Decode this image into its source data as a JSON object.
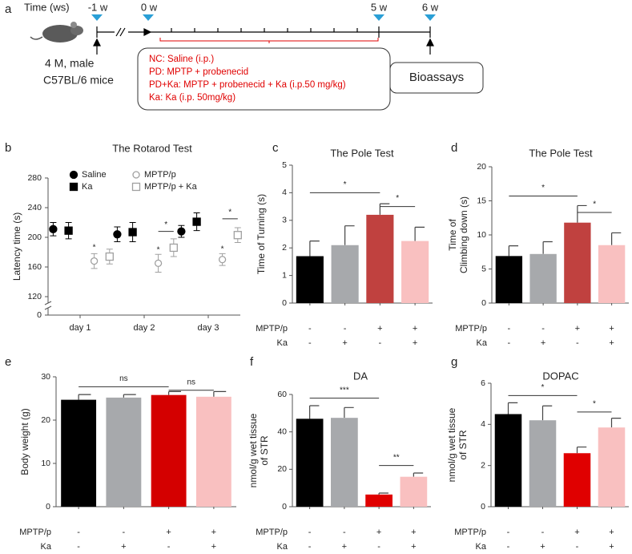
{
  "timeline": {
    "panel": "a",
    "axis_label": "Time (ws)",
    "timepoints": [
      "-1 w",
      "0 w",
      "5 w",
      "6 w"
    ],
    "subject": [
      "4 M, male",
      "C57BL/6 mice"
    ],
    "groups": [
      "NC: Saline  (i.p.)",
      "PD: MPTP + probenecid",
      "PD+Ka: MPTP + probenecid  + Ka (i.p.50 mg/kg)",
      "Ka: Ka (i.p. 50mg/kg)"
    ],
    "endpoint": "Bioassays"
  },
  "chart_data": [
    {
      "type": "scatter",
      "panel": "b",
      "title": "The Rotarod Test",
      "y_label": [
        "Latency time (s)"
      ],
      "categories": [
        "day 1",
        "day 2",
        "day 3"
      ],
      "ylim": [
        0,
        280
      ],
      "y_break": [
        0,
        120
      ],
      "yticks": [
        0,
        120,
        160,
        200,
        240,
        280
      ],
      "series": [
        {
          "name": "Saline",
          "color": "#000000",
          "marker": "circle",
          "filled": true,
          "values": [
            211,
            204,
            208
          ],
          "errors": [
            9,
            10,
            8
          ]
        },
        {
          "name": "Ka",
          "color": "#000000",
          "marker": "square",
          "filled": true,
          "values": [
            209,
            207,
            221
          ],
          "errors": [
            11,
            13,
            12
          ]
        },
        {
          "name": "MPTP/p",
          "color": "#a0a0a0",
          "marker": "circle",
          "filled": false,
          "values": [
            168,
            165,
            170
          ],
          "errors": [
            10,
            12,
            8
          ]
        },
        {
          "name": "MPTP/p + Ka",
          "color": "#a0a0a0",
          "marker": "square",
          "filled": false,
          "values": [
            174,
            186,
            203
          ],
          "errors": [
            10,
            12,
            10
          ]
        }
      ],
      "annotations": [
        {
          "text": "*",
          "x": 0.22,
          "y": 186
        },
        {
          "text": "*",
          "x": 1.22,
          "y": 183
        },
        {
          "text": "*",
          "x1": 1.22,
          "x2": 1.46,
          "y": 208
        },
        {
          "text": "*",
          "x": 2.22,
          "y": 184
        },
        {
          "text": "*",
          "x1": 2.22,
          "x2": 2.46,
          "y": 225
        }
      ]
    },
    {
      "type": "bar",
      "panel": "c",
      "title": "The Pole Test",
      "y_label": [
        "Time of Turning (s)"
      ],
      "categories": [
        null,
        null,
        null,
        null
      ],
      "values": [
        1.7,
        2.1,
        3.2,
        2.25
      ],
      "errors": [
        0.55,
        0.7,
        0.4,
        0.5
      ],
      "colors": [
        "#000000",
        "#a7a9ac",
        "#c0413f",
        "#f9c0c0"
      ],
      "ylim": [
        0,
        5
      ],
      "yticks": [
        0,
        1,
        2,
        3,
        4,
        5
      ],
      "conditions": [
        {
          "name": "MPTP/p",
          "signs": [
            "-",
            "-",
            "+",
            "+"
          ]
        },
        {
          "name": "Ka",
          "signs": [
            "-",
            "+",
            "-",
            "+"
          ]
        }
      ],
      "annotations": [
        {
          "text": "*",
          "from": 0,
          "to": 2,
          "y": 4.0
        },
        {
          "text": "*",
          "from": 2,
          "to": 3,
          "y": 3.5
        }
      ]
    },
    {
      "type": "bar",
      "panel": "d",
      "title": "The Pole Test",
      "y_label": [
        "Time of",
        "Climbing down (s)"
      ],
      "categories": [
        null,
        null,
        null,
        null
      ],
      "values": [
        6.9,
        7.2,
        11.8,
        8.5
      ],
      "errors": [
        1.5,
        1.8,
        2.5,
        1.8
      ],
      "colors": [
        "#000000",
        "#a7a9ac",
        "#c0413f",
        "#f9c0c0"
      ],
      "ylim": [
        0,
        20
      ],
      "yticks": [
        0,
        5,
        10,
        15,
        20
      ],
      "conditions": [
        {
          "name": "MPTP/p",
          "signs": [
            "-",
            "-",
            "+",
            "+"
          ]
        },
        {
          "name": "Ka",
          "signs": [
            "-",
            "+",
            "-",
            "+"
          ]
        }
      ],
      "annotations": [
        {
          "text": "*",
          "from": 0,
          "to": 2,
          "y": 15.7
        },
        {
          "text": "*",
          "from": 2,
          "to": 3,
          "y": 13.3
        }
      ]
    },
    {
      "type": "bar",
      "panel": "e",
      "y_label": [
        "Body weight (g)"
      ],
      "categories": [
        null,
        null,
        null,
        null
      ],
      "values": [
        24.7,
        25.2,
        25.8,
        25.4
      ],
      "errors": [
        1.2,
        0.7,
        0.8,
        1.2
      ],
      "colors": [
        "#000000",
        "#a7a9ac",
        "#d40000",
        "#f9c0c0"
      ],
      "ylim": [
        0,
        30
      ],
      "yticks": [
        0,
        10,
        20,
        30
      ],
      "conditions": [
        {
          "name": "MPTP/p",
          "signs": [
            "-",
            "-",
            "+",
            "+"
          ]
        },
        {
          "name": "Ka",
          "signs": [
            "-",
            "+",
            "-",
            "+"
          ]
        }
      ],
      "annotations": [
        {
          "text": "ns",
          "from": 0,
          "to": 2,
          "y": 27.7
        },
        {
          "text": "ns",
          "from": 2,
          "to": 3,
          "y": 26.9
        }
      ]
    },
    {
      "type": "bar",
      "panel": "f",
      "title": "DA",
      "y_label": [
        "nmol/g wet tissue",
        "of STR"
      ],
      "categories": [
        null,
        null,
        null,
        null
      ],
      "values": [
        47,
        47.5,
        6.5,
        16
      ],
      "errors": [
        7,
        5.5,
        0.8,
        2
      ],
      "colors": [
        "#000000",
        "#a7a9ac",
        "#e00000",
        "#f9c0c0"
      ],
      "ylim": [
        0,
        60
      ],
      "yticks": [
        0,
        20,
        40,
        60
      ],
      "conditions": [
        {
          "name": "MPTP/p",
          "signs": [
            "-",
            "-",
            "+",
            "+"
          ]
        },
        {
          "name": "Ka",
          "signs": [
            "-",
            "+",
            "-",
            "+"
          ]
        }
      ],
      "annotations": [
        {
          "text": "***",
          "from": 0,
          "to": 2,
          "y": 58
        },
        {
          "text": "**",
          "from": 2,
          "to": 3,
          "y": 22
        }
      ]
    },
    {
      "type": "bar",
      "panel": "g",
      "title": "DOPAC",
      "y_label": [
        "nmol/g wet tissue",
        "of STR"
      ],
      "categories": [
        null,
        null,
        null,
        null
      ],
      "values": [
        4.5,
        4.2,
        2.6,
        3.85
      ],
      "errors": [
        0.55,
        0.7,
        0.3,
        0.45
      ],
      "colors": [
        "#000000",
        "#a7a9ac",
        "#e00000",
        "#f9c0c0"
      ],
      "ylim": [
        0,
        6
      ],
      "yticks": [
        0,
        2,
        4,
        6
      ],
      "conditions": [
        {
          "name": "MPTP/p",
          "signs": [
            "-",
            "-",
            "+",
            "+"
          ]
        },
        {
          "name": "Ka",
          "signs": [
            "-",
            "+",
            "-",
            "+"
          ]
        }
      ],
      "annotations": [
        {
          "text": "*",
          "from": 0,
          "to": 2,
          "y": 5.4
        },
        {
          "text": "*",
          "from": 2,
          "to": 3,
          "y": 4.6
        }
      ]
    }
  ]
}
